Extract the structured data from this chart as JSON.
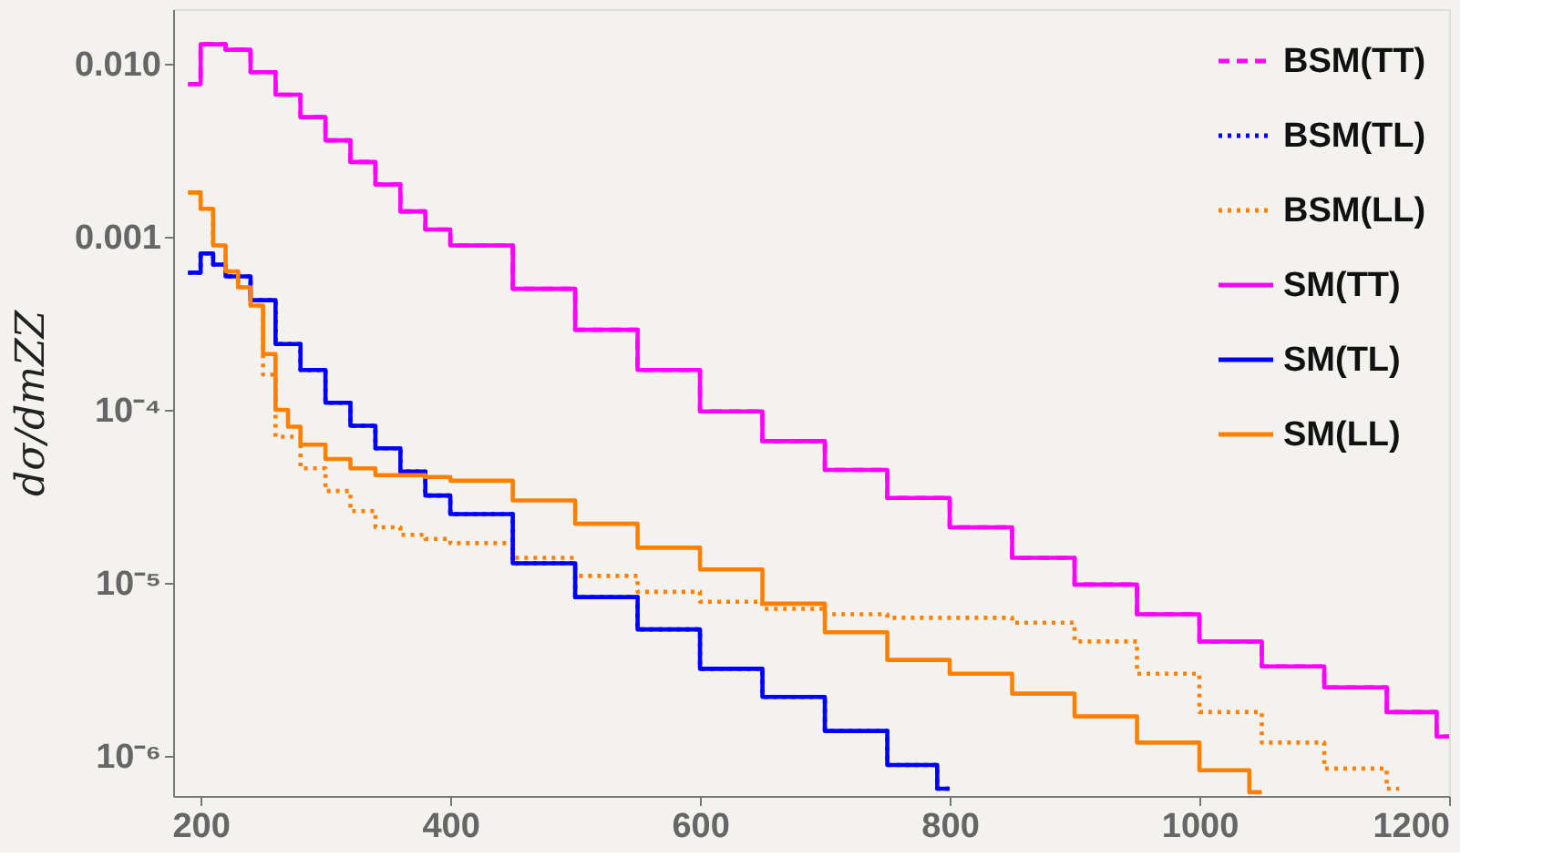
{
  "chart_data": {
    "type": "step",
    "ylabel": "dσ/dmZZ",
    "log": "y",
    "legend": "top right",
    "grid": false,
    "xlim": [
      178,
      1200
    ],
    "xticks": [
      200,
      400,
      600,
      800,
      1000,
      1200
    ],
    "ylim": [
      5.9e-07,
      0.0206
    ],
    "yticks": [
      {
        "value": 0.01,
        "label": "0.010"
      },
      {
        "value": 0.001,
        "label": "0.001"
      },
      {
        "value": 0.0001,
        "label": "10⁻⁴"
      },
      {
        "value": 1e-05,
        "label": "10⁻⁵"
      },
      {
        "value": 1e-06,
        "label": "10⁻⁶"
      }
    ],
    "series": [
      {
        "name": "BSM(TT)",
        "color": "#ff00ff",
        "line_style": "dashed",
        "x": [
          190,
          200,
          220,
          240,
          260,
          280,
          300,
          320,
          340,
          360,
          380,
          400,
          450,
          500,
          550,
          600,
          650,
          700,
          750,
          800,
          850,
          900,
          950,
          1000,
          1050,
          1100,
          1150,
          1190,
          1200
        ],
        "values": [
          0.0076,
          0.0129,
          0.012,
          0.0089,
          0.0066,
          0.0049,
          0.0036,
          0.0027,
          0.002,
          0.0014,
          0.0011,
          0.00089,
          0.0005,
          0.00029,
          0.00017,
          9.8e-05,
          6.6e-05,
          4.5e-05,
          3.1e-05,
          2.1e-05,
          1.4e-05,
          9.8e-06,
          6.6e-06,
          4.6e-06,
          3.3e-06,
          2.5e-06,
          1.8e-06,
          1.3e-06,
          1.3e-06
        ]
      },
      {
        "name": "BSM(TL)",
        "color": "#0000ff",
        "line_style": "dotted",
        "x": [
          190,
          200,
          210,
          220,
          240,
          260,
          280,
          300,
          320,
          340,
          360,
          380,
          400,
          450,
          500,
          550,
          600,
          650,
          700,
          750,
          790,
          800
        ],
        "values": [
          0.00062,
          0.0008,
          0.00069,
          0.00059,
          0.00043,
          0.00024,
          0.00017,
          0.00011,
          8.1e-05,
          6e-05,
          4.4e-05,
          3.2e-05,
          2.5e-05,
          1.3e-05,
          8.3e-06,
          5.4e-06,
          3.2e-06,
          2.2e-06,
          1.4e-06,
          8.9e-07,
          6.5e-07,
          6.5e-07
        ]
      },
      {
        "name": "BSM(LL)",
        "color": "#ff8000",
        "line_style": "dotted",
        "x": [
          190,
          200,
          210,
          220,
          230,
          240,
          250,
          260,
          280,
          300,
          320,
          340,
          360,
          380,
          400,
          450,
          500,
          550,
          600,
          650,
          700,
          750,
          800,
          850,
          900,
          950,
          1000,
          1050,
          1100,
          1150,
          1160
        ],
        "values": [
          0.0018,
          0.00145,
          0.00089,
          0.00063,
          0.00051,
          0.0004,
          0.00016,
          7e-05,
          4.6e-05,
          3.4e-05,
          2.6e-05,
          2.1e-05,
          1.9e-05,
          1.8e-05,
          1.7e-05,
          1.4e-05,
          1.1e-05,
          8.9e-06,
          7.8e-06,
          7.1e-06,
          6.6e-06,
          6.3e-06,
          6.3e-06,
          5.9e-06,
          4.6e-06,
          3e-06,
          1.8e-06,
          1.2e-06,
          8.5e-07,
          6.5e-07,
          6.5e-07
        ]
      },
      {
        "name": "SM(TT)",
        "color": "#ff00ff",
        "line_style": "solid",
        "x": [
          190,
          200,
          220,
          240,
          260,
          280,
          300,
          320,
          340,
          360,
          380,
          400,
          450,
          500,
          550,
          600,
          650,
          700,
          750,
          800,
          850,
          900,
          950,
          1000,
          1050,
          1100,
          1150,
          1190,
          1200
        ],
        "values": [
          0.0076,
          0.0129,
          0.012,
          0.0089,
          0.0066,
          0.0049,
          0.0036,
          0.0027,
          0.002,
          0.0014,
          0.0011,
          0.00089,
          0.0005,
          0.00029,
          0.00017,
          9.8e-05,
          6.6e-05,
          4.5e-05,
          3.1e-05,
          2.1e-05,
          1.4e-05,
          9.8e-06,
          6.6e-06,
          4.6e-06,
          3.3e-06,
          2.5e-06,
          1.8e-06,
          1.3e-06,
          1.3e-06
        ]
      },
      {
        "name": "SM(TL)",
        "color": "#0000ff",
        "line_style": "solid",
        "x": [
          190,
          200,
          210,
          220,
          240,
          260,
          280,
          300,
          320,
          340,
          360,
          380,
          400,
          450,
          500,
          550,
          600,
          650,
          700,
          750,
          790,
          800
        ],
        "values": [
          0.00062,
          0.0008,
          0.00069,
          0.00059,
          0.00043,
          0.00024,
          0.00017,
          0.00011,
          8.1e-05,
          6e-05,
          4.4e-05,
          3.2e-05,
          2.5e-05,
          1.3e-05,
          8.3e-06,
          5.4e-06,
          3.2e-06,
          2.2e-06,
          1.4e-06,
          8.9e-07,
          6.5e-07,
          6.5e-07
        ]
      },
      {
        "name": "SM(LL)",
        "color": "#ff8000",
        "line_style": "solid",
        "x": [
          190,
          200,
          210,
          220,
          230,
          240,
          250,
          260,
          270,
          280,
          300,
          320,
          340,
          360,
          380,
          400,
          450,
          500,
          550,
          600,
          650,
          700,
          750,
          800,
          850,
          900,
          950,
          1000,
          1040,
          1050
        ],
        "values": [
          0.0018,
          0.00145,
          0.00089,
          0.00063,
          0.00051,
          0.0004,
          0.00021,
          0.0001,
          8e-05,
          6.3e-05,
          5.2e-05,
          4.6e-05,
          4.2e-05,
          4.2e-05,
          4.1e-05,
          3.9e-05,
          3e-05,
          2.2e-05,
          1.6e-05,
          1.2e-05,
          7.6e-06,
          5.2e-06,
          3.6e-06,
          3e-06,
          2.3e-06,
          1.7e-06,
          1.2e-06,
          8.3e-07,
          6.2e-07,
          6.2e-07
        ]
      }
    ]
  }
}
